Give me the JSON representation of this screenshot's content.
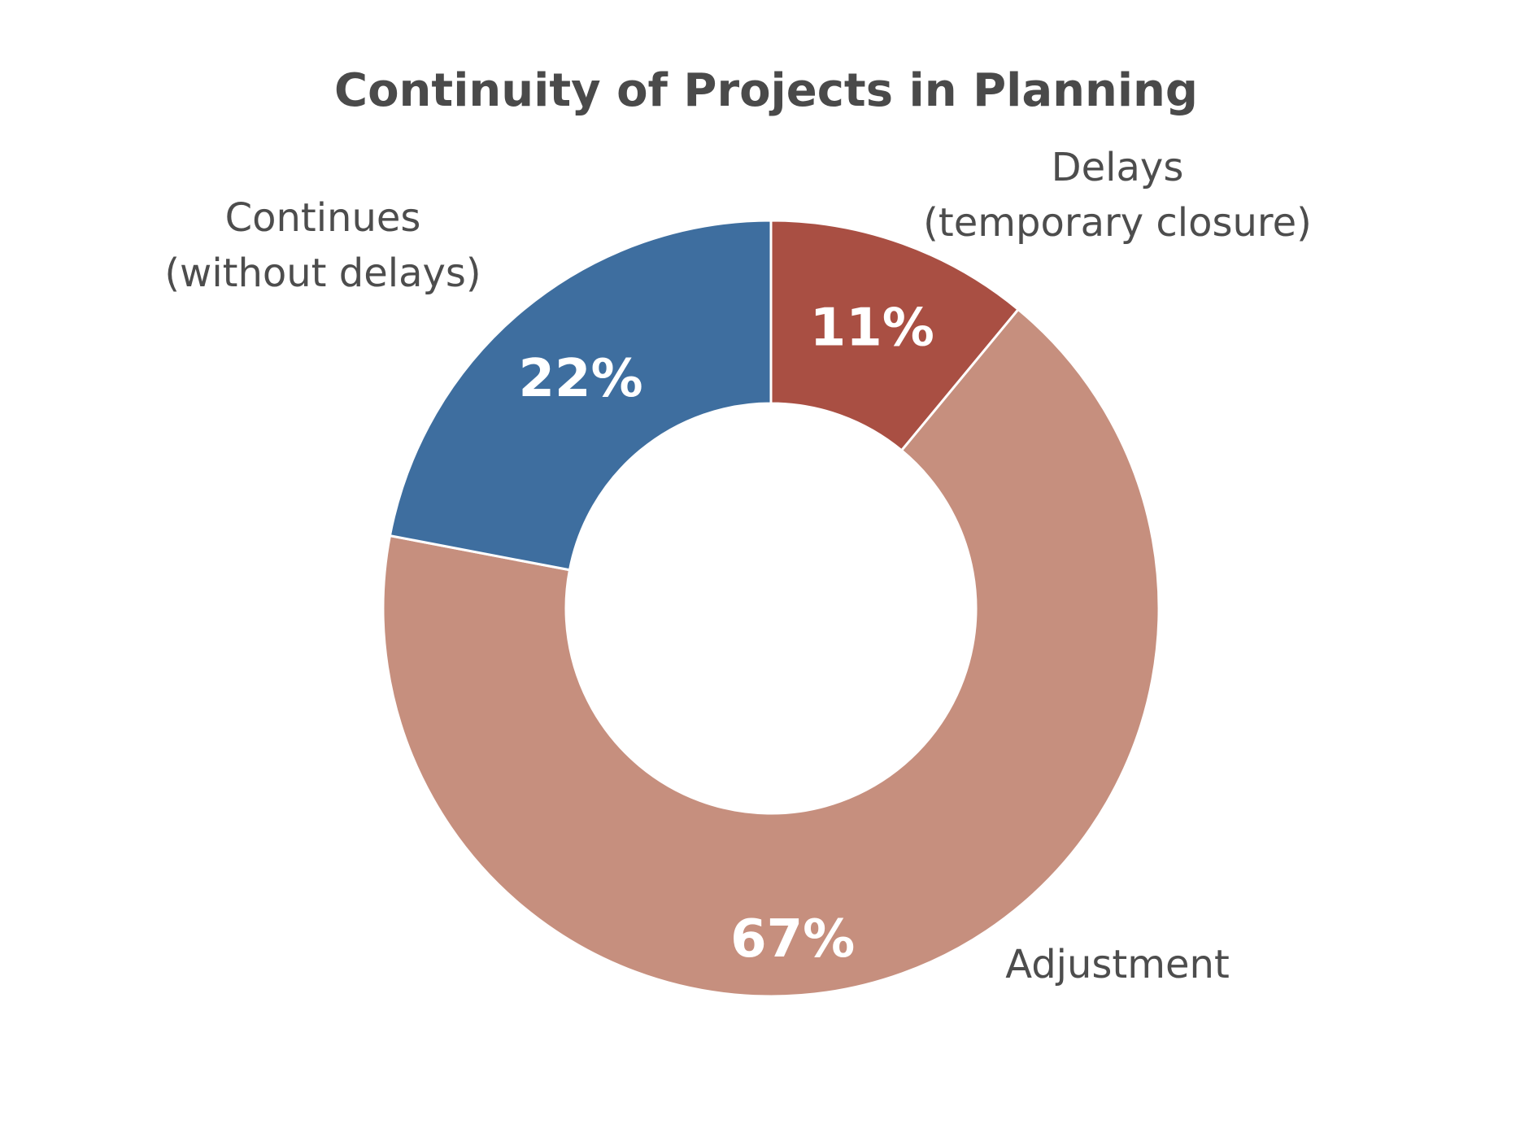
{
  "chart_data": {
    "type": "pie",
    "variant": "donut",
    "title": "Continuity of Projects in Planning",
    "start_angle": "12 o'clock, clockwise",
    "slices": [
      {
        "label_lines": [
          "Delays",
          "(temporary closure)"
        ],
        "value": 11,
        "value_label": "11%",
        "color": "#a94f43"
      },
      {
        "label_lines": [
          "Adjustment"
        ],
        "value": 67,
        "value_label": "67%",
        "color": "#c68f7e"
      },
      {
        "label_lines": [
          "Continues",
          "(without delays)"
        ],
        "value": 22,
        "value_label": "22%",
        "color": "#3e6e9f"
      }
    ]
  }
}
